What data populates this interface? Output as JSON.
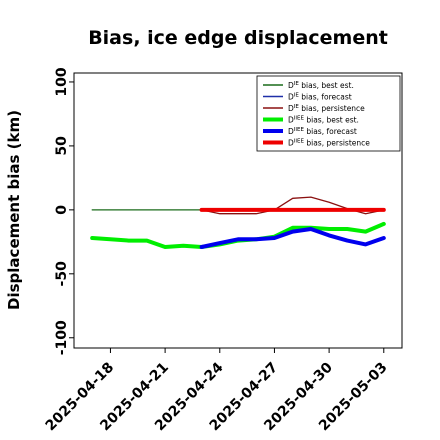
{
  "chart_data": {
    "type": "line",
    "title": "Bias, ice edge displacement",
    "xlabel": "",
    "ylabel": "Displacement bias (km)",
    "ylim": [
      -108,
      107
    ],
    "xlim": [
      "2025-04-16",
      "2025-05-04"
    ],
    "yticks": [
      100,
      50,
      0,
      -50,
      -100
    ],
    "yticklabels": [
      "100",
      "50",
      "0",
      "-50",
      "-100"
    ],
    "xticks": [
      {
        "label": "2025-04-18",
        "date": "2025-04-18",
        "color": "#000000"
      },
      {
        "label": "2025-04-21",
        "date": "2025-04-21",
        "color": "#000000"
      },
      {
        "label": "2025-04-24",
        "date": "2025-04-24",
        "color": "#1a8a1a"
      },
      {
        "label": "2025-04-27",
        "date": "2025-04-27",
        "color": "#000000"
      },
      {
        "label": "2025-04-30",
        "date": "2025-04-30",
        "color": "#000000"
      },
      {
        "label": "2025-05-03",
        "date": "2025-05-03",
        "color": "#000000"
      }
    ],
    "grid": false,
    "legend_position": "top-right",
    "series": [
      {
        "name": "D^IE bias, best est.",
        "color": "#1a6b1a",
        "width": 1.2,
        "points": [
          [
            "2025-04-17",
            0
          ],
          [
            "2025-04-23",
            0
          ]
        ]
      },
      {
        "name": "D^IE bias, forecast",
        "color": "#1f2fa8",
        "width": 1.2,
        "points": [
          [
            "2025-04-23",
            0
          ],
          [
            "2025-05-03",
            0
          ]
        ]
      },
      {
        "name": "D^IE bias, persistence",
        "color": "#8b1010",
        "width": 1.3,
        "points": [
          [
            "2025-04-23",
            0
          ],
          [
            "2025-04-24",
            -3
          ],
          [
            "2025-04-25",
            -3
          ],
          [
            "2025-04-26",
            -3
          ],
          [
            "2025-04-27",
            0
          ],
          [
            "2025-04-28",
            9
          ],
          [
            "2025-04-29",
            10
          ],
          [
            "2025-04-30",
            6
          ],
          [
            "2025-05-01",
            1
          ],
          [
            "2025-05-02",
            -3
          ],
          [
            "2025-05-03",
            0
          ]
        ]
      },
      {
        "name": "D^IIEE bias, best est.",
        "color": "#00ee00",
        "width": 4,
        "points": [
          [
            "2025-04-17",
            -22
          ],
          [
            "2025-04-18",
            -23
          ],
          [
            "2025-04-19",
            -24
          ],
          [
            "2025-04-20",
            -24
          ],
          [
            "2025-04-21",
            -29
          ],
          [
            "2025-04-22",
            -28
          ],
          [
            "2025-04-23",
            -29
          ],
          [
            "2025-04-24",
            -27
          ],
          [
            "2025-04-25",
            -24
          ],
          [
            "2025-04-26",
            -23
          ],
          [
            "2025-04-27",
            -21
          ],
          [
            "2025-04-28",
            -14
          ],
          [
            "2025-04-29",
            -14
          ],
          [
            "2025-04-30",
            -15
          ],
          [
            "2025-05-01",
            -15
          ],
          [
            "2025-05-02",
            -17
          ],
          [
            "2025-05-03",
            -11
          ]
        ]
      },
      {
        "name": "D^IIEE bias, forecast",
        "color": "#0000ee",
        "width": 4,
        "points": [
          [
            "2025-04-23",
            -29
          ],
          [
            "2025-04-24",
            -26
          ],
          [
            "2025-04-25",
            -23
          ],
          [
            "2025-04-26",
            -23
          ],
          [
            "2025-04-27",
            -22
          ],
          [
            "2025-04-28",
            -17
          ],
          [
            "2025-04-29",
            -15
          ],
          [
            "2025-04-30",
            -20
          ],
          [
            "2025-05-01",
            -24
          ],
          [
            "2025-05-02",
            -27
          ],
          [
            "2025-05-03",
            -22
          ]
        ]
      },
      {
        "name": "D^IIEE bias, persistence",
        "color": "#ee0000",
        "width": 4,
        "points": [
          [
            "2025-04-23",
            0
          ],
          [
            "2025-05-03",
            0
          ]
        ]
      }
    ]
  }
}
